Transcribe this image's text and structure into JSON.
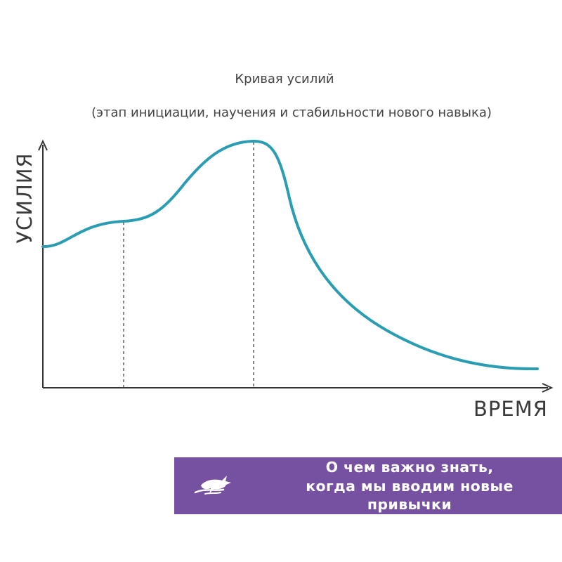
{
  "chart_data": {
    "type": "line",
    "title": "Кривая усилий",
    "subtitle": "(этап инициации, научения и стабильности нового навыка)",
    "xlabel": "ВРЕМЯ",
    "ylabel": "УСИЛИЯ",
    "grid": false,
    "axis_ticks": false,
    "stage_markers": 2,
    "curve_color": "#2a9db3",
    "axis_color": "#333333"
  },
  "banner": {
    "background": "#7650a1",
    "line1": "О чем важно знать,",
    "line2": "когда мы вводим новые",
    "line3": "привычки",
    "logo_icon": "hare-icon"
  }
}
